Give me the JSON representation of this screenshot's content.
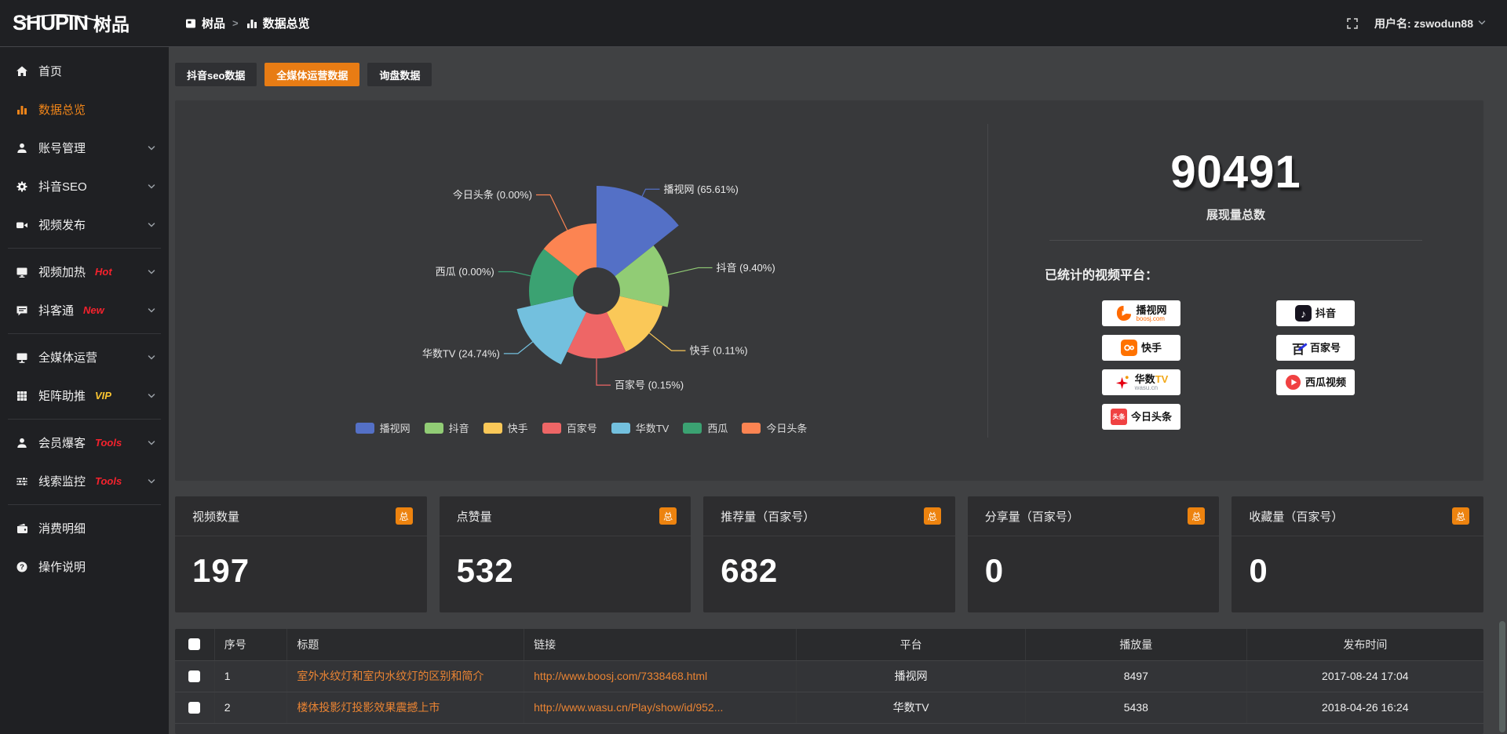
{
  "colors": {
    "accent": "#e87c14",
    "sidebar_active": "#f08519",
    "link": "#ea8433",
    "tag_red": "#f5222d",
    "tag_yellow": "#fbc531",
    "badge_orange": "#ed830f"
  },
  "topbar": {
    "logo_main": "SHUPIN",
    "logo_sub": "树品",
    "breadcrumb": [
      {
        "label": "树品",
        "icon": "app-icon"
      },
      {
        "label": "数据总览",
        "icon": "bar-chart-icon"
      }
    ],
    "breadcrumb_separator": ">",
    "fullscreen_icon": "fullscreen-icon",
    "username": "用户名: zswodun88"
  },
  "sidebar": {
    "items": [
      {
        "label": "首页",
        "icon": "home-icon"
      },
      {
        "label": "数据总览",
        "icon": "bar-chart-icon",
        "active": true
      },
      {
        "label": "账号管理",
        "icon": "user-icon",
        "expandable": true
      },
      {
        "label": "抖音SEO",
        "icon": "gear-icon",
        "expandable": true
      },
      {
        "label": "视频发布",
        "icon": "video-camera-icon",
        "expandable": true,
        "divider_after": true
      },
      {
        "label": "视频加热",
        "icon": "screen-icon",
        "tag": "Hot",
        "tag_color": "#f5222d",
        "expandable": true
      },
      {
        "label": "抖客通",
        "icon": "chat-icon",
        "tag": "New",
        "tag_color": "#f5222d",
        "expandable": true,
        "divider_after": true
      },
      {
        "label": "全媒体运营",
        "icon": "monitor-icon",
        "expandable": true
      },
      {
        "label": "矩阵助推",
        "icon": "grid-icon",
        "tag": "VIP",
        "tag_color": "#fbc531",
        "expandable": true,
        "divider_after": true
      },
      {
        "label": "会员爆客",
        "icon": "person-icon",
        "tag": "Tools",
        "tag_color": "#f5222d",
        "expandable": true
      },
      {
        "label": "线索监控",
        "icon": "sliders-icon",
        "tag": "Tools",
        "tag_color": "#f5222d",
        "expandable": true,
        "divider_after": true
      },
      {
        "label": "消费明细",
        "icon": "wallet-icon"
      },
      {
        "label": "操作说明",
        "icon": "question-icon"
      }
    ]
  },
  "tabs": [
    {
      "label": "抖音seo数据",
      "active": false
    },
    {
      "label": "全媒体运营数据",
      "active": true
    },
    {
      "label": "询盘数据",
      "active": false
    }
  ],
  "chart_data": {
    "type": "pie",
    "style": "nightingale-rose-donut",
    "unit": "%",
    "slices": [
      {
        "name": "播视网",
        "value": 65.61,
        "label": "播视网 (65.61%)",
        "color": "#5470c6"
      },
      {
        "name": "抖音",
        "value": 9.4,
        "label": "抖音 (9.40%)",
        "color": "#91cc75"
      },
      {
        "name": "快手",
        "value": 0.11,
        "label": "快手 (0.11%)",
        "color": "#fac858"
      },
      {
        "name": "百家号",
        "value": 0.15,
        "label": "百家号 (0.15%)",
        "color": "#ee6666"
      },
      {
        "name": "华数TV",
        "value": 24.74,
        "label": "华数TV (24.74%)",
        "color": "#73c0de"
      },
      {
        "name": "西瓜",
        "value": 0.0,
        "label": "西瓜 (0.00%)",
        "color": "#3ba272"
      },
      {
        "name": "今日头条",
        "value": 0.0,
        "label": "今日头条 (0.00%)",
        "color": "#fc8452"
      }
    ],
    "legend": [
      "播视网",
      "抖音",
      "快手",
      "百家号",
      "华数TV",
      "西瓜",
      "今日头条"
    ],
    "legend_position": "bottom"
  },
  "summary": {
    "total": "90491",
    "total_label": "展现量总数",
    "platforms_title": "已统计的视频平台：",
    "platforms": [
      {
        "name": "播视网",
        "sub": "boosj.com",
        "sub_color": "#ff6a00",
        "icon": "boosj-logo"
      },
      {
        "name": "抖音",
        "icon": "douyin-logo"
      },
      {
        "name": "快手",
        "icon": "kuaishou-logo"
      },
      {
        "name": "百家号",
        "icon": "baijiahao-logo"
      },
      {
        "name": "华数",
        "accent": "TV",
        "accent_color": "#f2a818",
        "sub": "wasu.cn",
        "sub_color": "#8d939c",
        "icon": "wasu-logo"
      },
      {
        "name": "西瓜视频",
        "icon": "xigua-logo"
      },
      {
        "name": "今日头条",
        "icon": "toutiao-logo"
      }
    ]
  },
  "stat_cards": [
    {
      "title": "视频数量",
      "badge": "总",
      "value": "197"
    },
    {
      "title": "点赞量",
      "badge": "总",
      "value": "532"
    },
    {
      "title": "推荐量（百家号）",
      "badge": "总",
      "value": "682"
    },
    {
      "title": "分享量（百家号）",
      "badge": "总",
      "value": "0"
    },
    {
      "title": "收藏量（百家号）",
      "badge": "总",
      "value": "0"
    }
  ],
  "table": {
    "headers": [
      "序号",
      "标题",
      "链接",
      "平台",
      "播放量",
      "发布时间"
    ],
    "rows": [
      {
        "index": "1",
        "title": "室外水纹灯和室内水纹灯的区别和简介",
        "link": "http://www.boosj.com/7338468.html",
        "platform": "播视网",
        "plays": "8497",
        "time": "2017-08-24 17:04"
      },
      {
        "index": "2",
        "title": "楼体投影灯投影效果震撼上市",
        "link": "http://www.wasu.cn/Play/show/id/952...",
        "platform": "华数TV",
        "plays": "5438",
        "time": "2018-04-26 16:24"
      }
    ]
  }
}
